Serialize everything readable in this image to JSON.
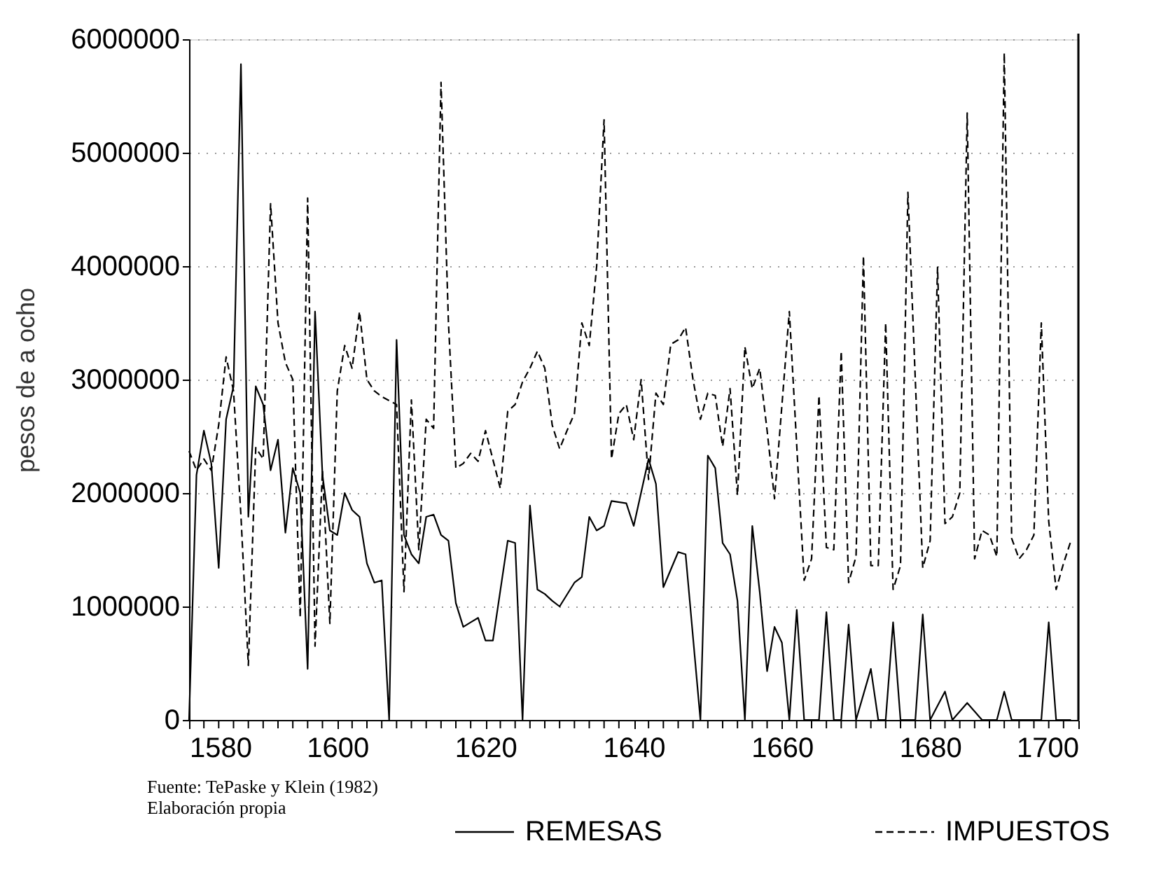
{
  "chart_data": {
    "type": "line",
    "ylabel": "pesos de a ocho",
    "annotations": [
      "Fuente: TePaske y Klein  (1982)",
      "Elaboración propia"
    ],
    "xlim": [
      1580,
      1700
    ],
    "xticks": [
      1580,
      {
        "value": 1582,
        "label": null
      },
      {
        "value": 1584,
        "label": null
      },
      {
        "value": 1586,
        "label": null
      },
      {
        "value": 1588,
        "label": null
      },
      {
        "value": 1590,
        "label": null
      },
      {
        "value": 1592,
        "label": null
      },
      {
        "value": 1594,
        "label": null
      },
      {
        "value": 1596,
        "label": null
      },
      {
        "value": 1598,
        "label": null
      },
      1600,
      {
        "value": 1602,
        "label": null
      },
      {
        "value": 1604,
        "label": null
      },
      {
        "value": 1606,
        "label": null
      },
      {
        "value": 1608,
        "label": null
      },
      {
        "value": 1610,
        "label": null
      },
      {
        "value": 1612,
        "label": null
      },
      {
        "value": 1614,
        "label": null
      },
      {
        "value": 1616,
        "label": null
      },
      {
        "value": 1618,
        "label": null
      },
      1620,
      {
        "value": 1622,
        "label": null
      },
      {
        "value": 1624,
        "label": null
      },
      {
        "value": 1626,
        "label": null
      },
      {
        "value": 1628,
        "label": null
      },
      {
        "value": 1630,
        "label": null
      },
      {
        "value": 1632,
        "label": null
      },
      {
        "value": 1634,
        "label": null
      },
      {
        "value": 1636,
        "label": null
      },
      {
        "value": 1638,
        "label": null
      },
      1640,
      {
        "value": 1642,
        "label": null
      },
      {
        "value": 1644,
        "label": null
      },
      {
        "value": 1646,
        "label": null
      },
      {
        "value": 1648,
        "label": null
      },
      {
        "value": 1650,
        "label": null
      },
      {
        "value": 1652,
        "label": null
      },
      {
        "value": 1654,
        "label": null
      },
      {
        "value": 1656,
        "label": null
      },
      {
        "value": 1658,
        "label": null
      },
      1660,
      {
        "value": 1662,
        "label": null
      },
      {
        "value": 1664,
        "label": null
      },
      {
        "value": 1666,
        "label": null
      },
      {
        "value": 1668,
        "label": null
      },
      {
        "value": 1670,
        "label": null
      },
      {
        "value": 1672,
        "label": null
      },
      {
        "value": 1674,
        "label": null
      },
      {
        "value": 1676,
        "label": null
      },
      {
        "value": 1678,
        "label": null
      },
      1680,
      {
        "value": 1682,
        "label": null
      },
      {
        "value": 1684,
        "label": null
      },
      {
        "value": 1686,
        "label": null
      },
      {
        "value": 1688,
        "label": null
      },
      {
        "value": 1690,
        "label": null
      },
      {
        "value": 1692,
        "label": null
      },
      {
        "value": 1694,
        "label": null
      },
      {
        "value": 1696,
        "label": null
      },
      {
        "value": 1698,
        "label": null
      },
      1700
    ],
    "ylim": [
      0,
      6000000
    ],
    "yticks": [
      0,
      1000000,
      2000000,
      3000000,
      4000000,
      5000000,
      6000000
    ],
    "grid": "y",
    "legend": "bottom",
    "marker": "none",
    "series": [
      {
        "name": "REMESAS",
        "color": "#000000",
        "line_style": "solid",
        "x": [
          1580,
          1581,
          1582,
          1583,
          1584,
          1585,
          1586,
          1587,
          1588,
          1589,
          1590,
          1591,
          1592,
          1593,
          1594,
          1595,
          1596,
          1597,
          1598,
          1599,
          1600,
          1601,
          1602,
          1603,
          1604,
          1605,
          1606,
          1607,
          1608,
          1609,
          1610,
          1611,
          1612,
          1613,
          1614,
          1615,
          1616,
          1617,
          1618,
          1619,
          1620,
          1621,
          1623,
          1624,
          1625,
          1626,
          1627,
          1628,
          1629,
          1630,
          1632,
          1633,
          1634,
          1635,
          1636,
          1637,
          1639,
          1640,
          1642,
          1643,
          1644,
          1646,
          1647,
          1649,
          1650,
          1651,
          1652,
          1653,
          1654,
          1655,
          1656,
          1657,
          1658,
          1659,
          1660,
          1661,
          1662,
          1663,
          1665,
          1666,
          1667,
          1668,
          1669,
          1670,
          1672,
          1673,
          1674,
          1675,
          1676,
          1678,
          1679,
          1680,
          1682,
          1683,
          1685,
          1687,
          1689,
          1690,
          1691,
          1695,
          1696,
          1697,
          1699
        ],
        "values": [
          0,
          2160000,
          2550000,
          2260000,
          1340000,
          2650000,
          2940000,
          5780000,
          1790000,
          2940000,
          2780000,
          2200000,
          2470000,
          1650000,
          2220000,
          2000000,
          450000,
          3600000,
          2160000,
          1670000,
          1630000,
          2000000,
          1850000,
          1790000,
          1380000,
          1210000,
          1230000,
          0,
          3350000,
          1630000,
          1460000,
          1380000,
          1790000,
          1810000,
          1630000,
          1580000,
          1030000,
          820000,
          860000,
          900000,
          700000,
          700000,
          1580000,
          1560000,
          0,
          1890000,
          1150000,
          1110000,
          1050000,
          1000000,
          1210000,
          1260000,
          1790000,
          1670000,
          1710000,
          1930000,
          1910000,
          1710000,
          2300000,
          2080000,
          1170000,
          1480000,
          1460000,
          0,
          2330000,
          2220000,
          1560000,
          1460000,
          1050000,
          0,
          1710000,
          1130000,
          430000,
          820000,
          680000,
          0,
          970000,
          0,
          0,
          950000,
          0,
          0,
          840000,
          0,
          450000,
          0,
          0,
          860000,
          0,
          0,
          930000,
          0,
          250000,
          0,
          150000,
          0,
          0,
          250000,
          0,
          0,
          860000,
          0,
          0
        ]
      },
      {
        "name": "IMPUESTOS",
        "color": "#000000",
        "line_style": "dashed",
        "x": [
          1580,
          1581,
          1582,
          1583,
          1584,
          1585,
          1586,
          1587,
          1588,
          1589,
          1590,
          1591,
          1592,
          1593,
          1594,
          1595,
          1596,
          1597,
          1598,
          1599,
          1600,
          1601,
          1602,
          1603,
          1604,
          1605,
          1606,
          1608,
          1609,
          1610,
          1611,
          1612,
          1613,
          1614,
          1615,
          1616,
          1617,
          1618,
          1619,
          1620,
          1622,
          1623,
          1624,
          1625,
          1626,
          1627,
          1628,
          1629,
          1630,
          1631,
          1632,
          1633,
          1634,
          1635,
          1636,
          1637,
          1638,
          1639,
          1640,
          1641,
          1642,
          1643,
          1644,
          1645,
          1646,
          1647,
          1648,
          1649,
          1650,
          1651,
          1652,
          1653,
          1654,
          1655,
          1656,
          1657,
          1658,
          1659,
          1661,
          1663,
          1664,
          1665,
          1666,
          1667,
          1668,
          1669,
          1670,
          1671,
          1672,
          1673,
          1674,
          1675,
          1676,
          1677,
          1679,
          1680,
          1681,
          1682,
          1683,
          1684,
          1685,
          1686,
          1687,
          1688,
          1689,
          1690,
          1691,
          1692,
          1693,
          1694,
          1695,
          1696,
          1697,
          1698,
          1699
        ],
        "values": [
          2370000,
          2200000,
          2300000,
          2200000,
          2600000,
          3200000,
          2900000,
          1800000,
          480000,
          2400000,
          2300000,
          4550000,
          3500000,
          3150000,
          3000000,
          900000,
          4600000,
          650000,
          2200000,
          850000,
          2900000,
          3300000,
          3100000,
          3600000,
          3000000,
          2900000,
          2850000,
          2780000,
          1130000,
          2820000,
          1500000,
          2650000,
          2570000,
          5620000,
          3500000,
          2220000,
          2260000,
          2350000,
          2280000,
          2550000,
          2040000,
          2720000,
          2780000,
          2980000,
          3100000,
          3250000,
          3100000,
          2600000,
          2390000,
          2550000,
          2700000,
          3500000,
          3300000,
          4000000,
          5290000,
          2300000,
          2700000,
          2780000,
          2470000,
          3000000,
          2120000,
          2880000,
          2780000,
          3310000,
          3350000,
          3460000,
          3000000,
          2650000,
          2880000,
          2860000,
          2410000,
          2920000,
          1980000,
          3290000,
          2920000,
          3100000,
          2550000,
          1950000,
          3600000,
          1230000,
          1420000,
          2860000,
          1520000,
          1500000,
          3250000,
          1210000,
          1440000,
          4090000,
          1360000,
          1360000,
          3500000,
          1150000,
          1360000,
          4650000,
          1340000,
          1580000,
          3990000,
          1730000,
          1790000,
          2000000,
          5350000,
          1420000,
          1670000,
          1630000,
          1440000,
          5880000,
          1600000,
          1420000,
          1500000,
          1630000,
          3500000,
          1750000,
          1150000,
          1380000,
          1580000
        ]
      }
    ]
  }
}
